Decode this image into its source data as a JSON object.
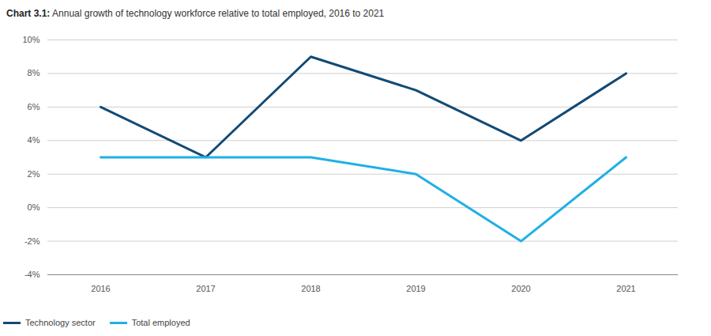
{
  "chart_data": {
    "type": "line",
    "title": "Chart 3.1: Annual growth of technology workforce relative to total employed, 2016 to 2021",
    "categories": [
      "2016",
      "2017",
      "2018",
      "2019",
      "2020",
      "2021"
    ],
    "series": [
      {
        "name": "Technology sector",
        "color": "#124a74",
        "values": [
          6,
          3,
          9,
          7,
          4,
          8
        ]
      },
      {
        "name": "Total employed",
        "color": "#1fb0e6",
        "values": [
          3,
          3,
          3,
          2,
          -2,
          3
        ]
      }
    ],
    "ylim": [
      -4,
      10
    ],
    "yticks": [
      {
        "value": -4,
        "label": "-4%"
      },
      {
        "value": -2,
        "label": "-2%"
      },
      {
        "value": 0,
        "label": "0%"
      },
      {
        "value": 2,
        "label": "2%"
      },
      {
        "value": 4,
        "label": "4%"
      },
      {
        "value": 6,
        "label": "6%"
      },
      {
        "value": 8,
        "label": "8%"
      },
      {
        "value": 10,
        "label": "10%"
      }
    ],
    "grid": true,
    "legend": "bottom-left"
  }
}
